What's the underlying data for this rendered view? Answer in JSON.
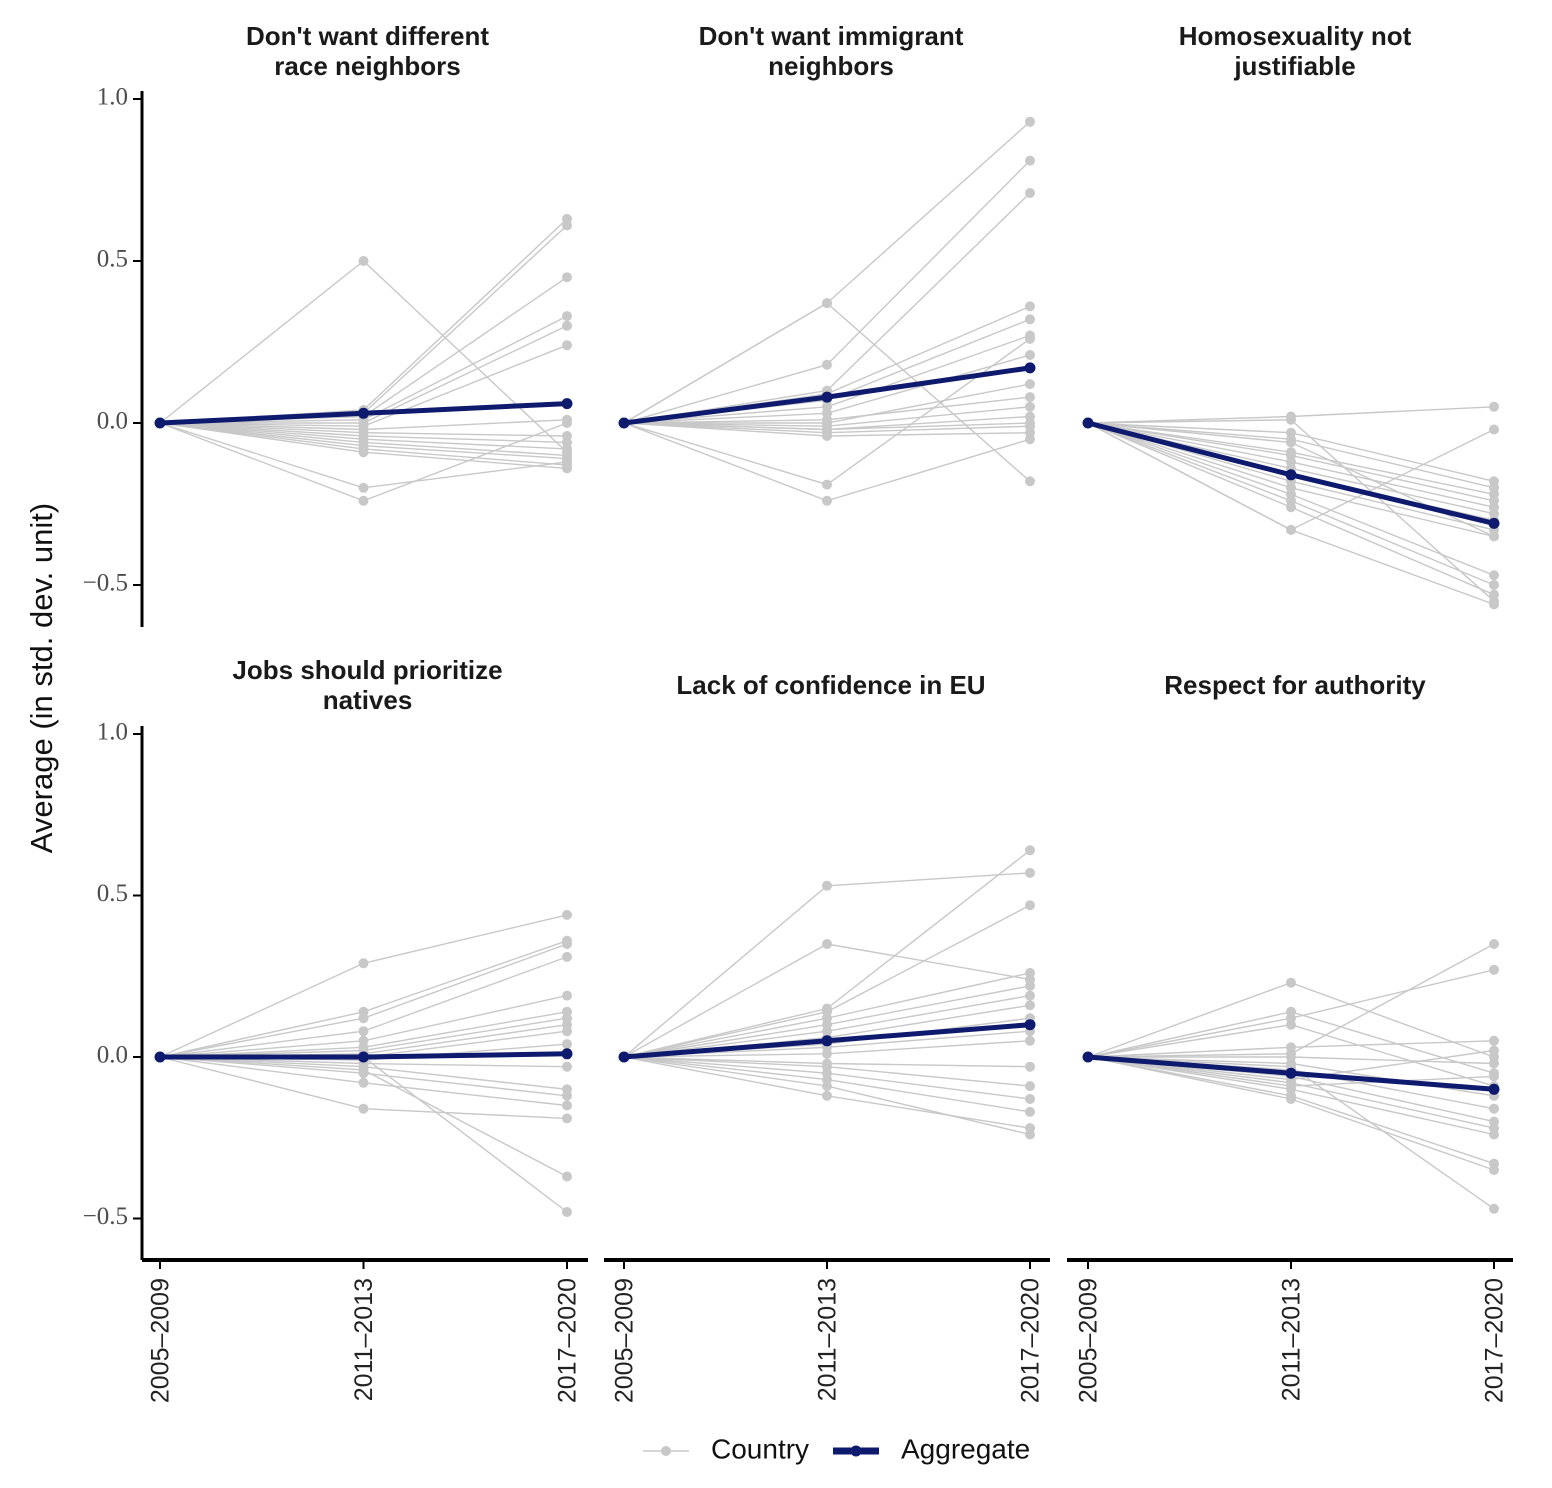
{
  "chart_data": {
    "type": "line",
    "ylabel": "Average (in std. dev. unit)",
    "x": [
      "2005–2009",
      "2011–2013",
      "2017–2020"
    ],
    "ylim": [
      -0.62,
      1.02
    ],
    "y_ticks": [
      1.0,
      0.5,
      0.0,
      -0.5
    ],
    "y_tick_labels": [
      "1.0",
      "0.5",
      "0.0",
      "−0.5"
    ],
    "colors": {
      "country": "#c8c8c8",
      "aggregate": "#0d1a6e",
      "axis": "#000000"
    },
    "legend": [
      {
        "name": "Country",
        "style": "country"
      },
      {
        "name": "Aggregate",
        "style": "aggregate"
      }
    ],
    "panels": [
      {
        "title": [
          "Don't want different",
          "race neighbors"
        ],
        "aggregate": [
          0,
          0.03,
          0.06
        ],
        "countries": [
          [
            0,
            0.5,
            -0.09
          ],
          [
            0,
            0.04,
            0.63
          ],
          [
            0,
            0.03,
            0.61
          ],
          [
            0,
            0.02,
            0.45
          ],
          [
            0,
            0.01,
            0.33
          ],
          [
            0,
            0.0,
            0.3
          ],
          [
            0,
            -0.01,
            0.24
          ],
          [
            0,
            -0.02,
            0.01
          ],
          [
            0,
            -0.03,
            -0.04
          ],
          [
            0,
            -0.04,
            -0.06
          ],
          [
            0,
            -0.05,
            -0.08
          ],
          [
            0,
            -0.06,
            -0.1
          ],
          [
            0,
            -0.07,
            -0.11
          ],
          [
            0,
            -0.2,
            -0.12
          ],
          [
            0,
            -0.24,
            0.0
          ],
          [
            0,
            -0.08,
            -0.13
          ],
          [
            0,
            -0.09,
            -0.14
          ]
        ]
      },
      {
        "title": [
          "Don't want immigrant",
          "neighbors"
        ],
        "aggregate": [
          0,
          0.08,
          0.17
        ],
        "countries": [
          [
            0,
            0.37,
            0.93
          ],
          [
            0,
            0.37,
            -0.18
          ],
          [
            0,
            0.18,
            0.81
          ],
          [
            0,
            0.1,
            0.71
          ],
          [
            0,
            0.09,
            0.36
          ],
          [
            0,
            0.07,
            0.32
          ],
          [
            0,
            0.05,
            0.27
          ],
          [
            0,
            0.03,
            0.21
          ],
          [
            0,
            0.01,
            0.08
          ],
          [
            0,
            -0.01,
            0.05
          ],
          [
            0,
            -0.02,
            0.02
          ],
          [
            0,
            -0.03,
            -0.01
          ],
          [
            0,
            -0.04,
            -0.03
          ],
          [
            0,
            -0.19,
            0.26
          ],
          [
            0,
            -0.24,
            -0.05
          ],
          [
            0,
            0.0,
            0.12
          ],
          [
            0,
            -0.02,
            0.0
          ]
        ]
      },
      {
        "title": [
          "Homosexuality not",
          "justifiable"
        ],
        "aggregate": [
          0,
          -0.16,
          -0.31
        ],
        "countries": [
          [
            0,
            0.02,
            0.05
          ],
          [
            0,
            -0.33,
            -0.02
          ],
          [
            0,
            0.01,
            -0.55
          ],
          [
            0,
            -0.03,
            -0.18
          ],
          [
            0,
            -0.05,
            -0.2
          ],
          [
            0,
            -0.09,
            -0.22
          ],
          [
            0,
            -0.1,
            -0.24
          ],
          [
            0,
            -0.12,
            -0.26
          ],
          [
            0,
            -0.14,
            -0.28
          ],
          [
            0,
            -0.16,
            -0.3
          ],
          [
            0,
            -0.18,
            -0.33
          ],
          [
            0,
            -0.2,
            -0.35
          ],
          [
            0,
            -0.22,
            -0.47
          ],
          [
            0,
            -0.24,
            -0.5
          ],
          [
            0,
            -0.26,
            -0.53
          ],
          [
            0,
            -0.33,
            -0.56
          ],
          [
            0,
            -0.06,
            -0.35
          ]
        ]
      },
      {
        "title": [
          "Jobs should prioritize",
          "natives"
        ],
        "aggregate": [
          0,
          0.0,
          0.01
        ],
        "countries": [
          [
            0,
            0.29,
            0.44
          ],
          [
            0,
            0.14,
            0.36
          ],
          [
            0,
            0.12,
            0.35
          ],
          [
            0,
            0.08,
            0.31
          ],
          [
            0,
            0.05,
            0.19
          ],
          [
            0,
            0.03,
            0.14
          ],
          [
            0,
            0.02,
            0.12
          ],
          [
            0,
            0.01,
            0.1
          ],
          [
            0,
            0.0,
            0.08
          ],
          [
            0,
            -0.01,
            0.04
          ],
          [
            0,
            -0.02,
            -0.03
          ],
          [
            0,
            -0.03,
            -0.1
          ],
          [
            0,
            -0.05,
            -0.12
          ],
          [
            0,
            -0.08,
            -0.15
          ],
          [
            0,
            -0.16,
            -0.19
          ],
          [
            0,
            -0.04,
            -0.37
          ],
          [
            0,
            0.0,
            -0.48
          ]
        ]
      },
      {
        "title": [
          "Lack of confidence in EU"
        ],
        "aggregate": [
          0,
          0.05,
          0.1
        ],
        "countries": [
          [
            0,
            0.53,
            0.57
          ],
          [
            0,
            0.35,
            0.24
          ],
          [
            0,
            0.15,
            0.64
          ],
          [
            0,
            0.14,
            0.47
          ],
          [
            0,
            0.12,
            0.26
          ],
          [
            0,
            0.1,
            0.22
          ],
          [
            0,
            0.08,
            0.19
          ],
          [
            0,
            0.06,
            0.16
          ],
          [
            0,
            0.04,
            0.12
          ],
          [
            0,
            0.03,
            0.08
          ],
          [
            0,
            0.01,
            0.05
          ],
          [
            0,
            -0.02,
            -0.03
          ],
          [
            0,
            -0.03,
            -0.09
          ],
          [
            0,
            -0.05,
            -0.13
          ],
          [
            0,
            -0.07,
            -0.17
          ],
          [
            0,
            -0.12,
            -0.22
          ],
          [
            0,
            -0.09,
            -0.24
          ]
        ]
      },
      {
        "title": [
          "Respect for authority"
        ],
        "aggregate": [
          0,
          -0.05,
          -0.1
        ],
        "countries": [
          [
            0,
            0.23,
            0.0
          ],
          [
            0,
            0.14,
            -0.05
          ],
          [
            0,
            0.12,
            0.27
          ],
          [
            0,
            0.1,
            -0.09
          ],
          [
            0,
            0.03,
            0.05
          ],
          [
            0,
            0.01,
            0.35
          ],
          [
            0,
            0.0,
            -0.02
          ],
          [
            0,
            -0.02,
            -0.12
          ],
          [
            0,
            -0.04,
            -0.16
          ],
          [
            0,
            -0.06,
            -0.2
          ],
          [
            0,
            -0.08,
            -0.22
          ],
          [
            0,
            -0.1,
            -0.24
          ],
          [
            0,
            -0.12,
            -0.33
          ],
          [
            0,
            -0.13,
            -0.35
          ],
          [
            0,
            -0.03,
            -0.47
          ],
          [
            0,
            -0.07,
            0.02
          ],
          [
            0,
            -0.09,
            -0.06
          ]
        ]
      }
    ]
  }
}
